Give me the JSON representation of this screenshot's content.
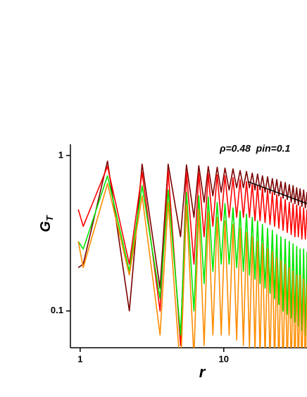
{
  "chart_data": {
    "type": "line",
    "annotation": "ρ=0.48  pin=0.1",
    "x_label": "r",
    "y_label": {
      "main": "G",
      "sub": "T"
    },
    "log_x": true,
    "log_y": true,
    "xlim": [
      0.855,
      38
    ],
    "ylim": [
      0.058,
      1.18
    ],
    "xticks": [
      1,
      10
    ],
    "yticks": [
      0.1,
      1
    ],
    "x": [
      0.97,
      1.05,
      1.55,
      2.2,
      2.7,
      3.6,
      4.1,
      5.0,
      5.5,
      6.2,
      6.7,
      7.3,
      7.8,
      8.4,
      9.0,
      9.6,
      10.2,
      10.9,
      11.6,
      12.3,
      13.0,
      13.7,
      14.4,
      15.1,
      15.8,
      16.5,
      17.2,
      17.9,
      18.6,
      19.4,
      20.2,
      21.0,
      21.8,
      22.6,
      23.4,
      24.2,
      25.0,
      25.9,
      26.8,
      27.7,
      28.6,
      29.5,
      30.4,
      31.3,
      32.2,
      33.1,
      34.0,
      35.0,
      36.0,
      37.0,
      38.0
    ],
    "series": [
      {
        "color": "#7a0000",
        "values": [
          0.19,
          0.2,
          0.92,
          0.1,
          0.88,
          0.14,
          0.88,
          0.3,
          0.87,
          0.4,
          0.86,
          0.5,
          0.85,
          0.55,
          0.84,
          0.58,
          0.83,
          0.6,
          0.82,
          0.62,
          0.8,
          0.62,
          0.79,
          0.62,
          0.77,
          0.6,
          0.76,
          0.6,
          0.74,
          0.58,
          0.73,
          0.57,
          0.71,
          0.56,
          0.7,
          0.55,
          0.68,
          0.53,
          0.67,
          0.52,
          0.65,
          0.5,
          0.64,
          0.49,
          0.62,
          0.48,
          0.61,
          0.47,
          0.6,
          0.46,
          0.58
        ]
      },
      {
        "color": "#ff0000",
        "values": [
          0.45,
          0.35,
          0.85,
          0.2,
          0.78,
          0.1,
          0.8,
          0.06,
          0.78,
          0.2,
          0.77,
          0.3,
          0.76,
          0.35,
          0.75,
          0.38,
          0.74,
          0.4,
          0.72,
          0.4,
          0.7,
          0.4,
          0.68,
          0.4,
          0.66,
          0.38,
          0.64,
          0.38,
          0.62,
          0.37,
          0.6,
          0.36,
          0.58,
          0.35,
          0.56,
          0.34,
          0.54,
          0.33,
          0.52,
          0.32,
          0.5,
          0.31,
          0.49,
          0.3,
          0.48,
          0.3,
          0.47,
          0.29,
          0.46,
          0.29,
          0.45
        ]
      },
      {
        "color": "#00e600",
        "values": [
          0.28,
          0.25,
          0.74,
          0.18,
          0.64,
          0.12,
          0.6,
          0.07,
          0.58,
          0.1,
          0.55,
          0.15,
          0.54,
          0.18,
          0.5,
          0.2,
          0.49,
          0.2,
          0.46,
          0.19,
          0.44,
          0.18,
          0.42,
          0.17,
          0.4,
          0.16,
          0.38,
          0.15,
          0.36,
          0.14,
          0.34,
          0.13,
          0.33,
          0.12,
          0.31,
          0.11,
          0.3,
          0.1,
          0.29,
          0.095,
          0.28,
          0.09,
          0.27,
          0.085,
          0.26,
          0.08,
          0.25,
          0.075,
          0.25,
          0.07,
          0.24
        ]
      },
      {
        "color": "#ff8c00",
        "values": [
          0.28,
          0.19,
          0.66,
          0.17,
          0.55,
          0.07,
          0.5,
          0.04,
          0.48,
          0.05,
          0.45,
          0.06,
          0.43,
          0.07,
          0.4,
          0.07,
          0.38,
          0.07,
          0.36,
          0.065,
          0.34,
          0.06,
          0.32,
          0.058,
          0.3,
          0.055,
          0.28,
          0.05,
          0.27,
          0.05,
          0.25,
          0.045,
          0.24,
          0.045,
          0.22,
          0.04,
          0.21,
          0.04,
          0.2,
          0.04,
          0.19,
          0.04,
          0.18,
          0.04,
          0.17,
          0.04,
          0.17,
          0.04,
          0.16,
          0.04,
          0.15
        ]
      }
    ],
    "fit": {
      "color": "#000000",
      "x": [
        14.7,
        38
      ],
      "values": [
        0.68,
        0.49
      ]
    }
  }
}
